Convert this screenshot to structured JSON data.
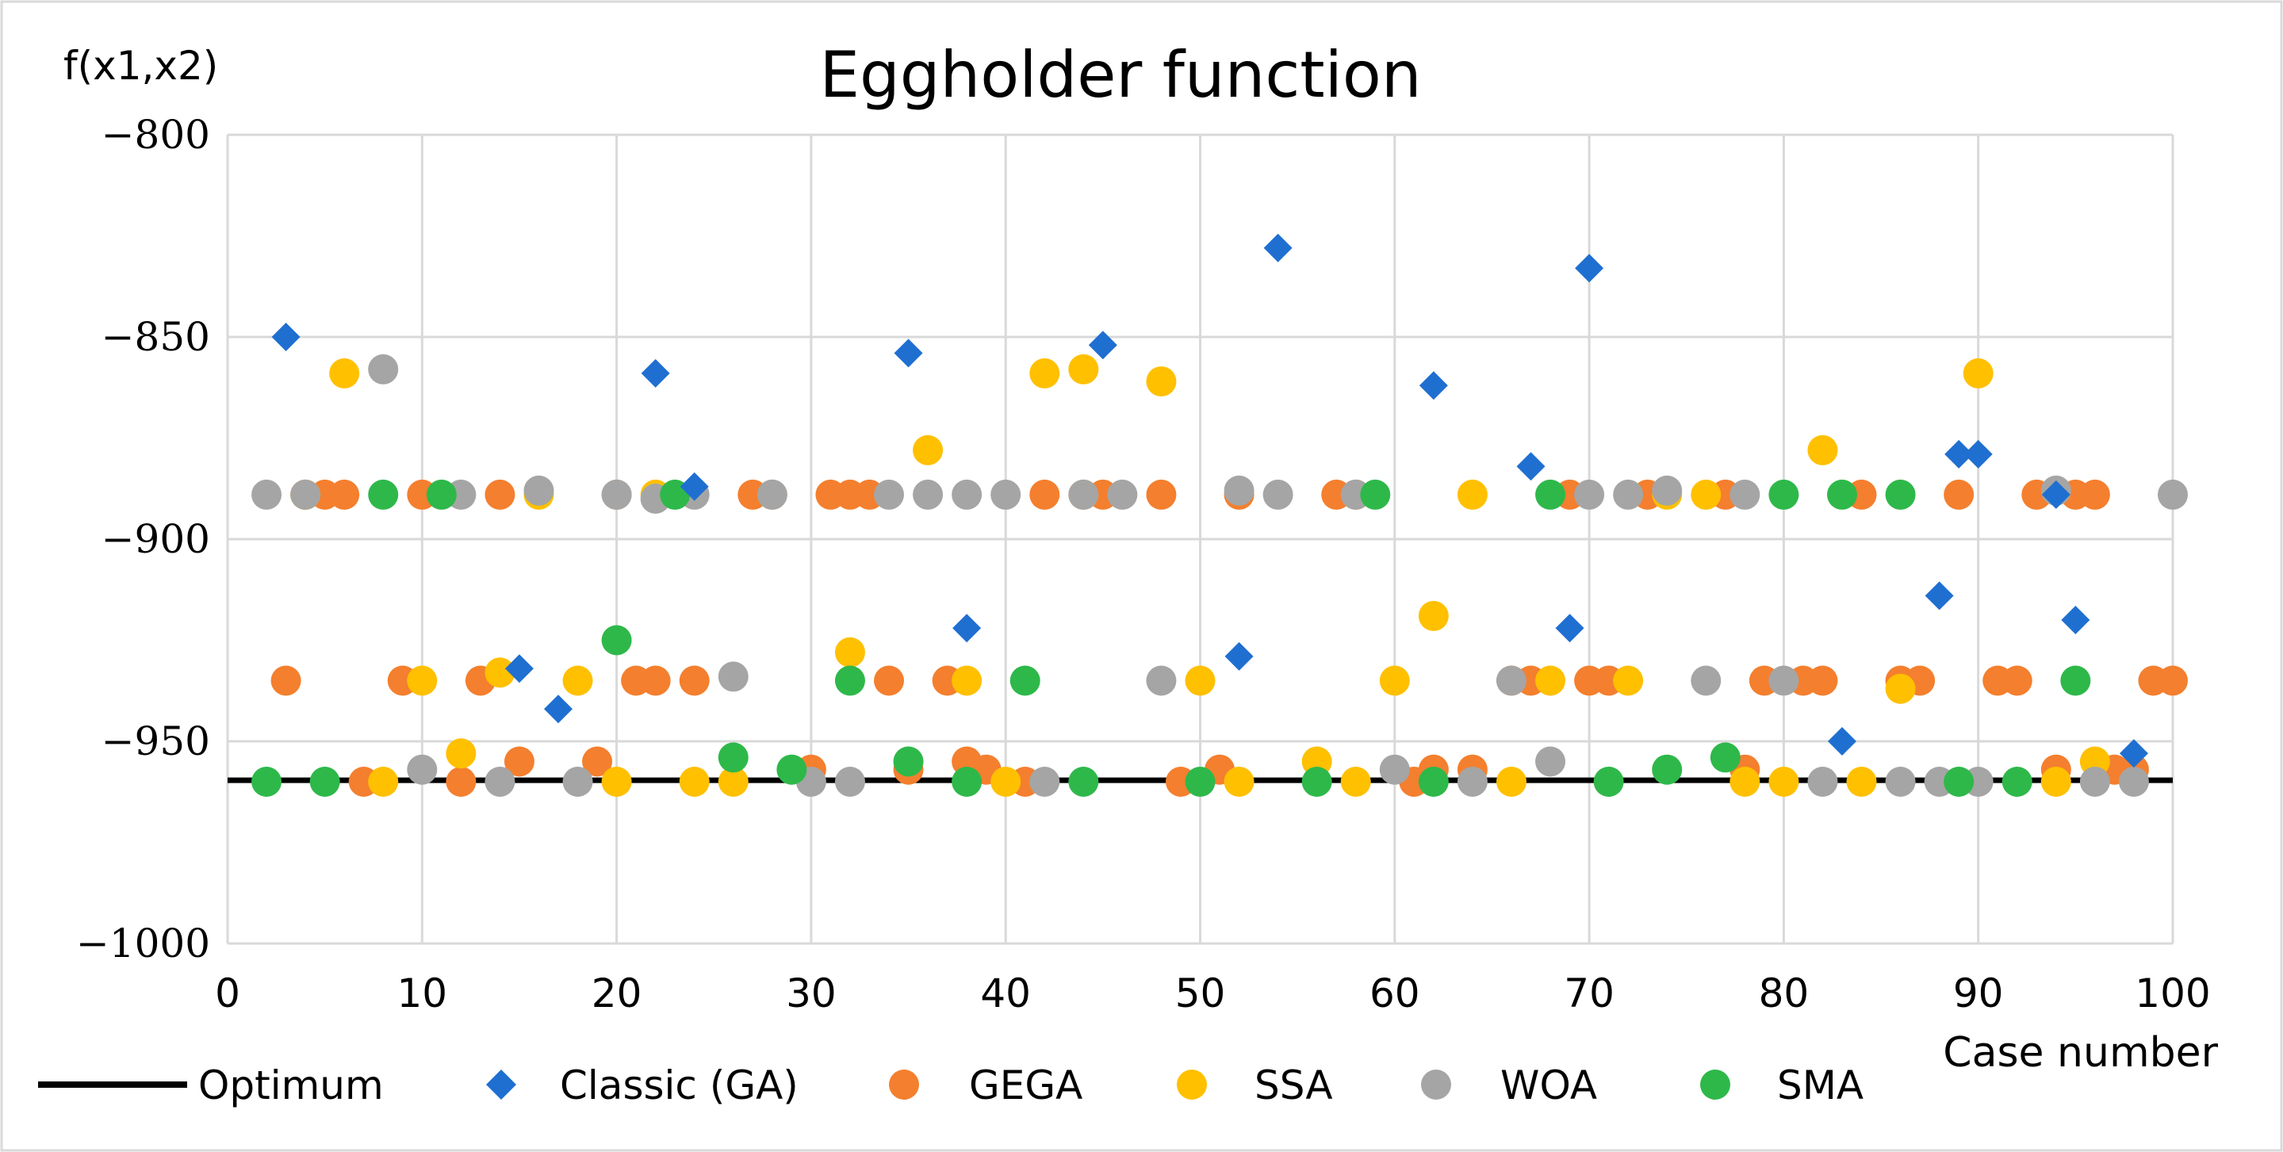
{
  "chart_data": {
    "type": "scatter",
    "title": "Eggholder function",
    "ylabel": "f(x1,x2)",
    "xlabel": "Case number",
    "xlim": [
      0,
      100
    ],
    "ylim": [
      -1000,
      -800
    ],
    "xticks": [
      0,
      10,
      20,
      30,
      40,
      50,
      60,
      70,
      80,
      90,
      100
    ],
    "yticks": [
      -800,
      -850,
      -900,
      -950,
      -1000
    ],
    "ytick_labels": [
      "−800",
      "−850",
      "−900",
      "−950",
      "−1000"
    ],
    "grid": true,
    "legend_position": "bottom",
    "optimum": {
      "name": "Optimum",
      "value": -959.64,
      "color": "#000000"
    },
    "series": [
      {
        "name": "Classic (GA)",
        "marker": "diamond",
        "color": "#1F6FD1",
        "points": [
          [
            3,
            -850
          ],
          [
            15,
            -932
          ],
          [
            17,
            -942
          ],
          [
            22,
            -859
          ],
          [
            24,
            -887
          ],
          [
            35,
            -854
          ],
          [
            38,
            -922
          ],
          [
            45,
            -852
          ],
          [
            52,
            -929
          ],
          [
            54,
            -828
          ],
          [
            62,
            -862
          ],
          [
            67,
            -882
          ],
          [
            69,
            -922
          ],
          [
            70,
            -833
          ],
          [
            83,
            -950
          ],
          [
            88,
            -914
          ],
          [
            89,
            -879
          ],
          [
            90,
            -879
          ],
          [
            94,
            -889
          ],
          [
            95,
            -920
          ],
          [
            98,
            -953
          ]
        ]
      },
      {
        "name": "GEGA",
        "marker": "circle",
        "color": "#F47F2E",
        "points": [
          [
            3,
            -935
          ],
          [
            4,
            -889
          ],
          [
            5,
            -889
          ],
          [
            6,
            -889
          ],
          [
            7,
            -960
          ],
          [
            9,
            -935
          ],
          [
            10,
            -889
          ],
          [
            12,
            -960
          ],
          [
            13,
            -935
          ],
          [
            14,
            -889
          ],
          [
            15,
            -955
          ],
          [
            19,
            -955
          ],
          [
            20,
            -889
          ],
          [
            21,
            -935
          ],
          [
            22,
            -935
          ],
          [
            24,
            -935
          ],
          [
            27,
            -889
          ],
          [
            28,
            -889
          ],
          [
            30,
            -957
          ],
          [
            31,
            -889
          ],
          [
            32,
            -889
          ],
          [
            33,
            -889
          ],
          [
            34,
            -935
          ],
          [
            35,
            -957
          ],
          [
            37,
            -935
          ],
          [
            38,
            -955
          ],
          [
            39,
            -957
          ],
          [
            41,
            -960
          ],
          [
            42,
            -889
          ],
          [
            44,
            -889
          ],
          [
            45,
            -889
          ],
          [
            48,
            -889
          ],
          [
            49,
            -960
          ],
          [
            51,
            -957
          ],
          [
            52,
            -889
          ],
          [
            57,
            -889
          ],
          [
            58,
            -889
          ],
          [
            61,
            -960
          ],
          [
            62,
            -957
          ],
          [
            64,
            -957
          ],
          [
            66,
            -935
          ],
          [
            67,
            -935
          ],
          [
            69,
            -889
          ],
          [
            70,
            -935
          ],
          [
            71,
            -935
          ],
          [
            73,
            -889
          ],
          [
            77,
            -889
          ],
          [
            78,
            -957
          ],
          [
            79,
            -935
          ],
          [
            81,
            -935
          ],
          [
            82,
            -935
          ],
          [
            84,
            -889
          ],
          [
            86,
            -935
          ],
          [
            87,
            -935
          ],
          [
            89,
            -889
          ],
          [
            91,
            -935
          ],
          [
            92,
            -935
          ],
          [
            93,
            -889
          ],
          [
            94,
            -957
          ],
          [
            95,
            -889
          ],
          [
            96,
            -889
          ],
          [
            97,
            -957
          ],
          [
            98,
            -957
          ],
          [
            99,
            -935
          ],
          [
            100,
            -935
          ]
        ]
      },
      {
        "name": "SSA",
        "marker": "circle",
        "color": "#FFC000",
        "points": [
          [
            4,
            -889
          ],
          [
            6,
            -859
          ],
          [
            8,
            -960
          ],
          [
            10,
            -935
          ],
          [
            12,
            -953
          ],
          [
            14,
            -933
          ],
          [
            16,
            -889
          ],
          [
            18,
            -935
          ],
          [
            20,
            -960
          ],
          [
            22,
            -889
          ],
          [
            24,
            -960
          ],
          [
            26,
            -960
          ],
          [
            32,
            -928
          ],
          [
            36,
            -878
          ],
          [
            38,
            -935
          ],
          [
            40,
            -960
          ],
          [
            42,
            -859
          ],
          [
            44,
            -858
          ],
          [
            48,
            -861
          ],
          [
            50,
            -935
          ],
          [
            52,
            -960
          ],
          [
            56,
            -955
          ],
          [
            58,
            -960
          ],
          [
            60,
            -935
          ],
          [
            62,
            -919
          ],
          [
            64,
            -889
          ],
          [
            66,
            -960
          ],
          [
            68,
            -935
          ],
          [
            72,
            -935
          ],
          [
            74,
            -889
          ],
          [
            76,
            -889
          ],
          [
            78,
            -960
          ],
          [
            80,
            -960
          ],
          [
            82,
            -878
          ],
          [
            84,
            -960
          ],
          [
            86,
            -937
          ],
          [
            90,
            -859
          ],
          [
            94,
            -960
          ],
          [
            96,
            -955
          ]
        ]
      },
      {
        "name": "WOA",
        "marker": "circle",
        "color": "#A5A5A5",
        "points": [
          [
            2,
            -889
          ],
          [
            4,
            -889
          ],
          [
            8,
            -858
          ],
          [
            10,
            -957
          ],
          [
            12,
            -889
          ],
          [
            14,
            -960
          ],
          [
            16,
            -888
          ],
          [
            18,
            -960
          ],
          [
            20,
            -889
          ],
          [
            22,
            -890
          ],
          [
            24,
            -889
          ],
          [
            26,
            -934
          ],
          [
            28,
            -889
          ],
          [
            30,
            -960
          ],
          [
            32,
            -960
          ],
          [
            34,
            -889
          ],
          [
            36,
            -889
          ],
          [
            38,
            -889
          ],
          [
            40,
            -889
          ],
          [
            42,
            -960
          ],
          [
            44,
            -889
          ],
          [
            46,
            -889
          ],
          [
            48,
            -935
          ],
          [
            52,
            -888
          ],
          [
            54,
            -889
          ],
          [
            58,
            -889
          ],
          [
            60,
            -957
          ],
          [
            64,
            -960
          ],
          [
            66,
            -935
          ],
          [
            68,
            -955
          ],
          [
            70,
            -889
          ],
          [
            72,
            -889
          ],
          [
            74,
            -888
          ],
          [
            76,
            -935
          ],
          [
            78,
            -889
          ],
          [
            80,
            -935
          ],
          [
            82,
            -960
          ],
          [
            86,
            -960
          ],
          [
            88,
            -960
          ],
          [
            90,
            -960
          ],
          [
            94,
            -888
          ],
          [
            96,
            -960
          ],
          [
            98,
            -960
          ],
          [
            100,
            -889
          ]
        ]
      },
      {
        "name": "SMA",
        "marker": "circle",
        "color": "#2EB84A",
        "points": [
          [
            2,
            -960
          ],
          [
            5,
            -960
          ],
          [
            8,
            -889
          ],
          [
            11,
            -889
          ],
          [
            20,
            -925
          ],
          [
            23,
            -889
          ],
          [
            26,
            -954
          ],
          [
            29,
            -957
          ],
          [
            32,
            -935
          ],
          [
            35,
            -955
          ],
          [
            38,
            -960
          ],
          [
            41,
            -935
          ],
          [
            44,
            -960
          ],
          [
            50,
            -960
          ],
          [
            56,
            -960
          ],
          [
            59,
            -889
          ],
          [
            62,
            -960
          ],
          [
            68,
            -889
          ],
          [
            71,
            -960
          ],
          [
            74,
            -957
          ],
          [
            77,
            -954
          ],
          [
            80,
            -889
          ],
          [
            83,
            -889
          ],
          [
            86,
            -889
          ],
          [
            89,
            -960
          ],
          [
            92,
            -960
          ],
          [
            95,
            -935
          ]
        ]
      }
    ]
  }
}
